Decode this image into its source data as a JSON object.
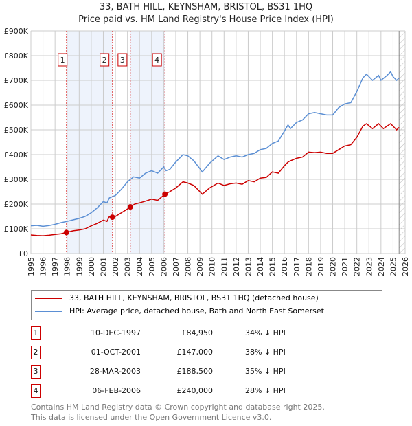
{
  "chart_data": {
    "type": "line",
    "title": "33, BATH HILL, KEYNSHAM, BRISTOL, BS31 1HQ",
    "subtitle": "Price paid vs. HM Land Registry's House Price Index (HPI)",
    "xlim": [
      1995,
      2026
    ],
    "ylim": [
      0,
      900000
    ],
    "yticks": [
      {
        "v": 0,
        "label": "£0"
      },
      {
        "v": 100000,
        "label": "£100K"
      },
      {
        "v": 200000,
        "label": "£200K"
      },
      {
        "v": 300000,
        "label": "£300K"
      },
      {
        "v": 400000,
        "label": "£400K"
      },
      {
        "v": 500000,
        "label": "£500K"
      },
      {
        "v": 600000,
        "label": "£600K"
      },
      {
        "v": 700000,
        "label": "£700K"
      },
      {
        "v": 800000,
        "label": "£800K"
      },
      {
        "v": 900000,
        "label": "£900K"
      }
    ],
    "xticks": [
      "1995",
      "1996",
      "1997",
      "1998",
      "1999",
      "2000",
      "2001",
      "2002",
      "2003",
      "2004",
      "2005",
      "2006",
      "2007",
      "2008",
      "2009",
      "2010",
      "2011",
      "2012",
      "2013",
      "2014",
      "2015",
      "2016",
      "2017",
      "2018",
      "2019",
      "2020",
      "2021",
      "2022",
      "2023",
      "2024",
      "2025",
      "2026"
    ],
    "grid": true,
    "forecast_from": 2025.5,
    "series": [
      {
        "name": "33, BATH HILL, KEYNSHAM, BRISTOL, BS31 1HQ (detached house)",
        "color": "#cc0000",
        "x": [
          1995,
          1995.5,
          1996,
          1996.5,
          1997,
          1997.5,
          1997.94,
          1998.5,
          1999,
          1999.5,
          2000,
          2000.5,
          2001,
          2001.3,
          2001.5,
          2001.75,
          2002,
          2002.5,
          2003,
          2003.24,
          2003.6,
          2004,
          2004.5,
          2005,
          2005.5,
          2006.1,
          2006.5,
          2007,
          2007.6,
          2008,
          2008.5,
          2009.2,
          2009.8,
          2010.5,
          2011,
          2011.5,
          2012,
          2012.5,
          2013,
          2013.5,
          2014,
          2014.5,
          2015,
          2015.5,
          2016,
          2016.3,
          2016.5,
          2017,
          2017.5,
          2018,
          2018.5,
          2019,
          2019.5,
          2020,
          2020.5,
          2021,
          2021.5,
          2022,
          2022.5,
          2022.8,
          2023.3,
          2023.8,
          2024.2,
          2024.8,
          2025,
          2025.3,
          2025.5
        ],
        "y": [
          75000,
          73000,
          72000,
          74000,
          77000,
          80000,
          84950,
          92000,
          95000,
          100000,
          112000,
          122000,
          135000,
          130000,
          150000,
          147000,
          150000,
          165000,
          180000,
          188500,
          200000,
          205000,
          212000,
          220000,
          215000,
          240000,
          250000,
          265000,
          290000,
          285000,
          275000,
          240000,
          265000,
          285000,
          275000,
          282000,
          285000,
          280000,
          295000,
          290000,
          305000,
          308000,
          330000,
          325000,
          355000,
          370000,
          375000,
          385000,
          390000,
          410000,
          408000,
          410000,
          405000,
          405000,
          420000,
          435000,
          440000,
          470000,
          515000,
          525000,
          505000,
          525000,
          505000,
          525000,
          515000,
          500000,
          510000
        ]
      },
      {
        "name": "HPI: Average price, detached house, Bath and North East Somerset",
        "color": "#5b8fd4",
        "x": [
          1995,
          1995.5,
          1996,
          1996.5,
          1997,
          1997.5,
          1998,
          1998.5,
          1999,
          1999.5,
          2000,
          2000.5,
          2001,
          2001.3,
          2001.5,
          2002,
          2002.5,
          2003,
          2003.5,
          2004,
          2004.5,
          2005,
          2005.5,
          2006,
          2006.2,
          2006.5,
          2007,
          2007.6,
          2008,
          2008.5,
          2009.2,
          2009.8,
          2010.5,
          2011,
          2011.5,
          2012,
          2012.5,
          2013,
          2013.5,
          2014,
          2014.5,
          2015,
          2015.5,
          2016,
          2016.3,
          2016.5,
          2017,
          2017.5,
          2018,
          2018.5,
          2019,
          2019.5,
          2020,
          2020.5,
          2021,
          2021.5,
          2022,
          2022.5,
          2022.8,
          2023.3,
          2023.8,
          2024,
          2024.5,
          2024.8,
          2025,
          2025.3,
          2025.5
        ],
        "y": [
          112000,
          114000,
          110000,
          113000,
          118000,
          125000,
          130000,
          136000,
          142000,
          150000,
          165000,
          185000,
          210000,
          205000,
          225000,
          235000,
          260000,
          290000,
          310000,
          305000,
          325000,
          335000,
          325000,
          350000,
          335000,
          340000,
          370000,
          400000,
          395000,
          375000,
          330000,
          365000,
          395000,
          380000,
          390000,
          395000,
          390000,
          400000,
          405000,
          420000,
          425000,
          445000,
          455000,
          495000,
          520000,
          505000,
          530000,
          540000,
          565000,
          570000,
          565000,
          560000,
          560000,
          590000,
          605000,
          610000,
          655000,
          710000,
          725000,
          700000,
          720000,
          700000,
          720000,
          735000,
          715000,
          700000,
          710000
        ]
      }
    ],
    "sales": [
      {
        "n": "1",
        "x": 1997.94,
        "date": "10-DEC-1997",
        "price": 84950,
        "price_label": "£84,950",
        "hpi": "34% ↓ HPI"
      },
      {
        "n": "2",
        "x": 2001.75,
        "date": "01-OCT-2001",
        "price": 147000,
        "price_label": "£147,000",
        "hpi": "38% ↓ HPI"
      },
      {
        "n": "3",
        "x": 2003.24,
        "date": "28-MAR-2003",
        "price": 188500,
        "price_label": "£188,500",
        "hpi": "35% ↓ HPI"
      },
      {
        "n": "4",
        "x": 2006.1,
        "date": "06-FEB-2006",
        "price": 240000,
        "price_label": "£240,000",
        "hpi": "28% ↓ HPI"
      }
    ],
    "shaded": [
      [
        1997.94,
        2001.75
      ],
      [
        2003.24,
        2006.1
      ]
    ]
  },
  "footer": {
    "line1": "Contains HM Land Registry data © Crown copyright and database right 2025.",
    "line2": "This data is licensed under the Open Government Licence v3.0."
  }
}
